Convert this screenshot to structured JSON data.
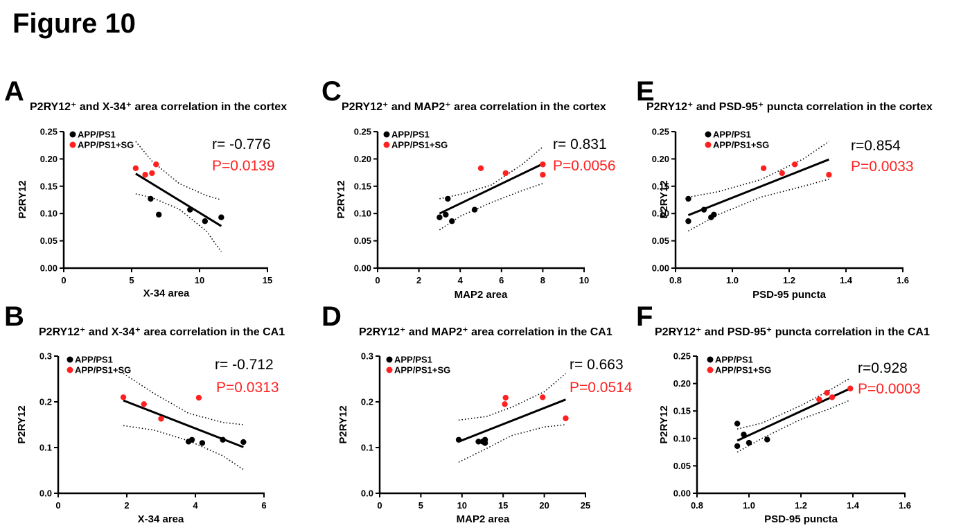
{
  "figure_title": "Figure 10",
  "colors": {
    "group1": "#000000",
    "group2": "#ff2020",
    "p_value": "#ff2020",
    "fit": "#000000"
  },
  "chart_data": [
    {
      "panel": "A",
      "type": "scatter",
      "title": "P2RY12⁺ and X-34⁺ area correlation in the cortex",
      "xlabel": "X-34 area",
      "ylabel": "P2RY12",
      "xlim": [
        0,
        15
      ],
      "ylim": [
        0,
        0.25
      ],
      "xticks": [
        "0",
        "5",
        "10",
        "15"
      ],
      "yticks": [
        "0.00",
        "0.05",
        "0.10",
        "0.15",
        "0.20",
        "0.25"
      ],
      "legend": [
        "APP/PS1",
        "APP/PS1+SG"
      ],
      "r_text": "r= -0.776",
      "p_text": "P=0.0139",
      "series": [
        {
          "name": "APP/PS1",
          "color": "#000000",
          "points": [
            [
              6.4,
              0.127
            ],
            [
              7.0,
              0.098
            ],
            [
              9.3,
              0.107
            ],
            [
              10.4,
              0.086
            ],
            [
              11.6,
              0.093
            ]
          ]
        },
        {
          "name": "APP/PS1+SG",
          "color": "#ff2020",
          "points": [
            [
              5.3,
              0.183
            ],
            [
              6.0,
              0.171
            ],
            [
              6.5,
              0.174
            ],
            [
              6.8,
              0.19
            ]
          ]
        }
      ],
      "fit": [
        [
          5.3,
          0.173
        ],
        [
          11.6,
          0.077
        ]
      ],
      "ci_upper": [
        [
          5.3,
          0.232
        ],
        [
          6.5,
          0.196
        ],
        [
          8.5,
          0.155
        ],
        [
          10.5,
          0.133
        ],
        [
          11.6,
          0.125
        ]
      ],
      "ci_lower": [
        [
          5.3,
          0.136
        ],
        [
          6.5,
          0.129
        ],
        [
          8.5,
          0.108
        ],
        [
          10.5,
          0.068
        ],
        [
          11.6,
          0.03
        ]
      ]
    },
    {
      "panel": "B",
      "type": "scatter",
      "title": "P2RY12⁺ and X-34⁺ area correlation in the CA1",
      "xlabel": "X-34 area",
      "ylabel": "P2RY12",
      "xlim": [
        0,
        6
      ],
      "ylim": [
        0,
        0.3
      ],
      "xticks": [
        "0",
        "2",
        "4",
        "6"
      ],
      "yticks": [
        "0.0",
        "0.1",
        "0.2",
        "0.3"
      ],
      "legend": [
        "APP/PS1",
        "APP/PS1+SG"
      ],
      "r_text": "r= -0.712",
      "p_text": "P=0.0313",
      "series": [
        {
          "name": "APP/PS1",
          "color": "#000000",
          "points": [
            [
              3.8,
              0.113
            ],
            [
              3.9,
              0.117
            ],
            [
              4.2,
              0.11
            ],
            [
              4.8,
              0.117
            ],
            [
              5.4,
              0.112
            ]
          ]
        },
        {
          "name": "APP/PS1+SG",
          "color": "#ff2020",
          "points": [
            [
              1.9,
              0.21
            ],
            [
              2.5,
              0.195
            ],
            [
              3.0,
              0.163
            ],
            [
              4.1,
              0.209
            ]
          ]
        }
      ],
      "fit": [
        [
          1.9,
          0.203
        ],
        [
          5.4,
          0.101
        ]
      ],
      "ci_upper": [
        [
          1.9,
          0.262
        ],
        [
          2.8,
          0.218
        ],
        [
          3.8,
          0.175
        ],
        [
          4.8,
          0.155
        ],
        [
          5.4,
          0.15
        ]
      ],
      "ci_lower": [
        [
          1.9,
          0.148
        ],
        [
          2.8,
          0.138
        ],
        [
          3.8,
          0.115
        ],
        [
          4.8,
          0.082
        ],
        [
          5.4,
          0.052
        ]
      ]
    },
    {
      "panel": "C",
      "type": "scatter",
      "title": "P2RY12⁺ and MAP2⁺ area correlation in the cortex",
      "xlabel": "MAP2 area",
      "ylabel": "P2RY12",
      "xlim": [
        0,
        10
      ],
      "ylim": [
        0,
        0.25
      ],
      "xticks": [
        "0",
        "2",
        "4",
        "6",
        "8",
        "10"
      ],
      "yticks": [
        "0.00",
        "0.05",
        "0.10",
        "0.15",
        "0.20",
        "0.25"
      ],
      "legend": [
        "APP/PS1",
        "APP/PS1+SG"
      ],
      "r_text": "r= 0.831",
      "p_text": "P=0.0056",
      "series": [
        {
          "name": "APP/PS1",
          "color": "#000000",
          "points": [
            [
              3.0,
              0.093
            ],
            [
              3.3,
              0.098
            ],
            [
              3.4,
              0.127
            ],
            [
              3.6,
              0.086
            ],
            [
              4.7,
              0.107
            ]
          ]
        },
        {
          "name": "APP/PS1+SG",
          "color": "#ff2020",
          "points": [
            [
              5.0,
              0.183
            ],
            [
              6.2,
              0.174
            ],
            [
              8.0,
              0.19
            ],
            [
              8.0,
              0.171
            ]
          ]
        }
      ],
      "fit": [
        [
          3.0,
          0.1
        ],
        [
          8.0,
          0.191
        ]
      ],
      "ci_upper": [
        [
          3.0,
          0.127
        ],
        [
          4.0,
          0.135
        ],
        [
          5.5,
          0.152
        ],
        [
          7.0,
          0.19
        ],
        [
          8.0,
          0.222
        ]
      ],
      "ci_lower": [
        [
          3.0,
          0.07
        ],
        [
          4.0,
          0.095
        ],
        [
          5.5,
          0.12
        ],
        [
          7.0,
          0.142
        ],
        [
          8.0,
          0.155
        ]
      ]
    },
    {
      "panel": "D",
      "type": "scatter",
      "title": "P2RY12⁺ and MAP2⁺ area correlation in the CA1",
      "xlabel": "MAP2 area",
      "ylabel": "P2RY12",
      "xlim": [
        0,
        25
      ],
      "ylim": [
        0,
        0.3
      ],
      "xticks": [
        "0",
        "5",
        "10",
        "15",
        "20",
        "25"
      ],
      "yticks": [
        "0.0",
        "0.1",
        "0.2",
        "0.3"
      ],
      "legend": [
        "APP/PS1",
        "APP/PS1+SG"
      ],
      "r_text": "r= 0.663",
      "p_text": "P=0.0514",
      "series": [
        {
          "name": "APP/PS1",
          "color": "#000000",
          "points": [
            [
              9.6,
              0.117
            ],
            [
              12.0,
              0.113
            ],
            [
              12.5,
              0.113
            ],
            [
              12.8,
              0.117
            ],
            [
              12.8,
              0.11
            ]
          ]
        },
        {
          "name": "APP/PS1+SG",
          "color": "#ff2020",
          "points": [
            [
              15.2,
              0.195
            ],
            [
              15.3,
              0.209
            ],
            [
              19.8,
              0.21
            ],
            [
              22.6,
              0.164
            ]
          ]
        }
      ],
      "fit": [
        [
          9.6,
          0.113
        ],
        [
          22.6,
          0.205
        ]
      ],
      "ci_upper": [
        [
          9.6,
          0.16
        ],
        [
          13.0,
          0.168
        ],
        [
          16.0,
          0.188
        ],
        [
          20.0,
          0.222
        ],
        [
          22.6,
          0.262
        ]
      ],
      "ci_lower": [
        [
          9.6,
          0.068
        ],
        [
          13.0,
          0.098
        ],
        [
          16.0,
          0.126
        ],
        [
          20.0,
          0.145
        ],
        [
          22.6,
          0.15
        ]
      ]
    },
    {
      "panel": "E",
      "type": "scatter",
      "title": "P2RY12⁺ and PSD-95⁺ puncta correlation in the cortex",
      "xlabel": "PSD-95 puncta",
      "ylabel": "P2RY12",
      "xlim": [
        0.8,
        1.6
      ],
      "ylim": [
        0,
        0.25
      ],
      "xticks": [
        "0.8",
        "1.0",
        "1.2",
        "1.4",
        "1.6"
      ],
      "yticks": [
        "0.00",
        "0.05",
        "0.10",
        "0.15",
        "0.20",
        "0.25"
      ],
      "legend": [
        "APP/PS1",
        "APP/PS1+SG"
      ],
      "r_text": "r=0.854",
      "p_text": "P=0.0033",
      "series": [
        {
          "name": "APP/PS1",
          "color": "#000000",
          "points": [
            [
              0.845,
              0.127
            ],
            [
              0.845,
              0.086
            ],
            [
              0.9,
              0.107
            ],
            [
              0.925,
              0.093
            ],
            [
              0.935,
              0.098
            ]
          ]
        },
        {
          "name": "APP/PS1+SG",
          "color": "#ff2020",
          "points": [
            [
              1.11,
              0.183
            ],
            [
              1.175,
              0.174
            ],
            [
              1.22,
              0.19
            ],
            [
              1.34,
              0.171
            ]
          ]
        }
      ],
      "fit": [
        [
          0.845,
          0.097
        ],
        [
          1.34,
          0.199
        ]
      ],
      "ci_upper": [
        [
          0.845,
          0.13
        ],
        [
          0.95,
          0.14
        ],
        [
          1.1,
          0.162
        ],
        [
          1.25,
          0.2
        ],
        [
          1.34,
          0.232
        ]
      ],
      "ci_lower": [
        [
          0.845,
          0.068
        ],
        [
          0.95,
          0.098
        ],
        [
          1.1,
          0.13
        ],
        [
          1.25,
          0.15
        ],
        [
          1.34,
          0.163
        ]
      ]
    },
    {
      "panel": "F",
      "type": "scatter",
      "title": "P2RY12⁺ and PSD-95⁺ puncta correlation in the CA1",
      "xlabel": "PSD-95 puncta",
      "ylabel": "P2RY12",
      "xlim": [
        0.8,
        1.6
      ],
      "ylim": [
        0,
        0.25
      ],
      "xticks": [
        "0.8",
        "1.0",
        "1.2",
        "1.4",
        "1.6"
      ],
      "yticks": [
        "0.00",
        "0.05",
        "0.10",
        "0.15",
        "0.20",
        "0.25"
      ],
      "legend": [
        "APP/PS1",
        "APP/PS1+SG"
      ],
      "r_text": "r=0.928",
      "p_text": "P=0.0003",
      "series": [
        {
          "name": "APP/PS1",
          "color": "#000000",
          "points": [
            [
              0.955,
              0.127
            ],
            [
              0.955,
              0.086
            ],
            [
              0.98,
              0.107
            ],
            [
              1.0,
              0.092
            ],
            [
              1.07,
              0.098
            ]
          ]
        },
        {
          "name": "APP/PS1+SG",
          "color": "#ff2020",
          "points": [
            [
              1.27,
              0.171
            ],
            [
              1.3,
              0.183
            ],
            [
              1.32,
              0.175
            ],
            [
              1.39,
              0.191
            ]
          ]
        }
      ],
      "fit": [
        [
          0.955,
          0.096
        ],
        [
          1.39,
          0.191
        ]
      ],
      "ci_upper": [
        [
          0.955,
          0.117
        ],
        [
          1.05,
          0.128
        ],
        [
          1.2,
          0.16
        ],
        [
          1.3,
          0.185
        ],
        [
          1.39,
          0.21
        ]
      ],
      "ci_lower": [
        [
          0.955,
          0.075
        ],
        [
          1.05,
          0.1
        ],
        [
          1.2,
          0.135
        ],
        [
          1.3,
          0.152
        ],
        [
          1.39,
          0.17
        ]
      ]
    }
  ]
}
